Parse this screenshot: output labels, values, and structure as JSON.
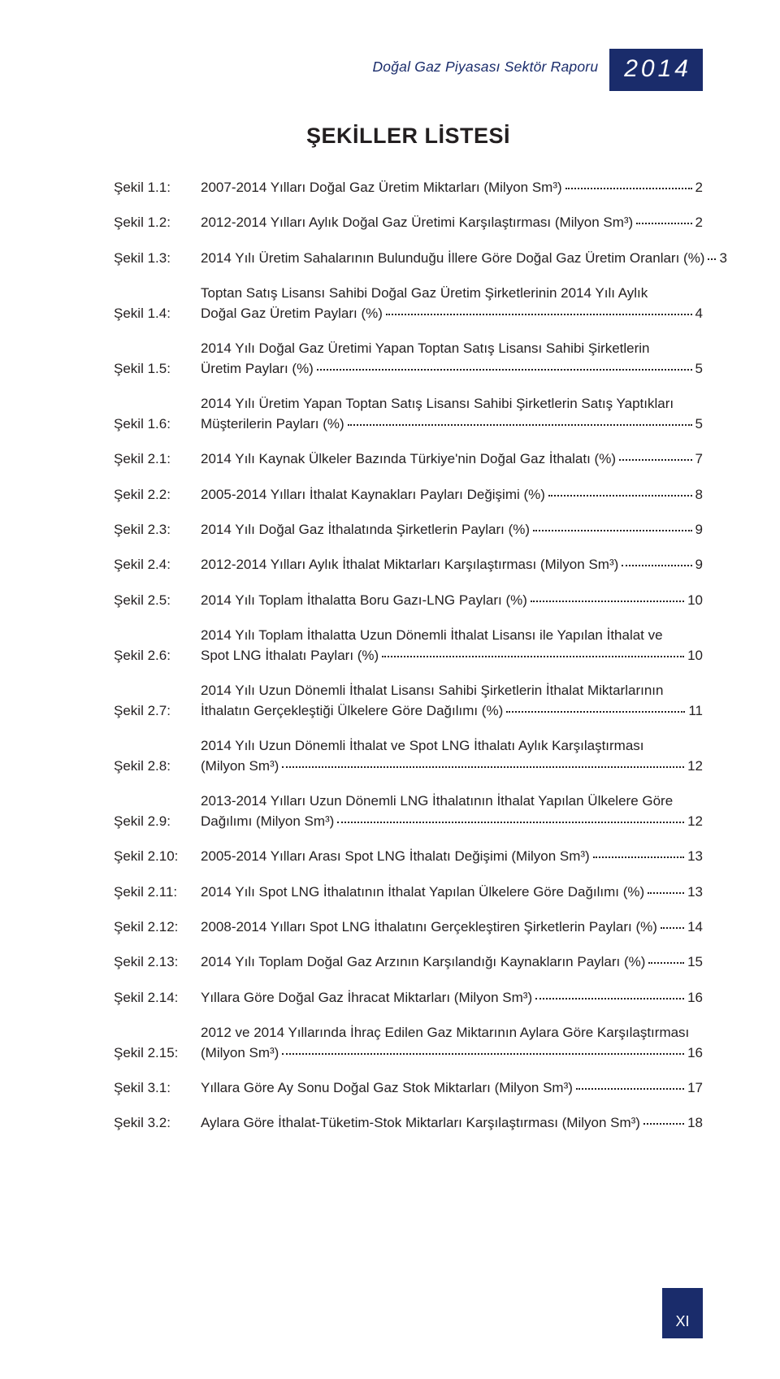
{
  "colors": {
    "accent": "#1a2c6b",
    "text": "#231f20",
    "bg": "#ffffff"
  },
  "typography": {
    "base_fontsize": 17,
    "title_fontsize": 27,
    "header_italic_fontsize": 17.5,
    "year_fontsize": 30
  },
  "header": {
    "report_title": "Doğal Gaz Piyasası Sektör Raporu",
    "year": "2014"
  },
  "title": "ŞEKİLLER LİSTESİ",
  "page_number": "XI",
  "entries": [
    {
      "label": "Şekil 1.1:",
      "lines": [
        "2007-2014 Yılları Doğal Gaz Üretim Miktarları (Milyon Sm³)"
      ],
      "page": "2"
    },
    {
      "label": "Şekil 1.2:",
      "lines": [
        "2012-2014 Yılları Aylık Doğal Gaz Üretimi Karşılaştırması (Milyon Sm³)"
      ],
      "page": "2"
    },
    {
      "label": "Şekil 1.3:",
      "lines": [
        "2014 Yılı Üretim Sahalarının Bulunduğu İllere Göre Doğal Gaz Üretim Oranları (%)"
      ],
      "page": "3"
    },
    {
      "label": "Şekil 1.4:",
      "lines": [
        "Toptan Satış Lisansı Sahibi Doğal Gaz Üretim Şirketlerinin 2014 Yılı Aylık",
        "Doğal Gaz Üretim Payları (%)"
      ],
      "page": "4"
    },
    {
      "label": "Şekil 1.5:",
      "lines": [
        "2014 Yılı Doğal Gaz Üretimi Yapan Toptan Satış Lisansı Sahibi Şirketlerin",
        "Üretim Payları (%)"
      ],
      "page": "5"
    },
    {
      "label": "Şekil 1.6:",
      "lines": [
        "2014 Yılı Üretim Yapan Toptan Satış Lisansı Sahibi Şirketlerin Satış Yaptıkları",
        "Müşterilerin Payları (%)"
      ],
      "page": "5"
    },
    {
      "label": "Şekil 2.1:",
      "lines": [
        "2014 Yılı Kaynak Ülkeler Bazında Türkiye'nin Doğal Gaz İthalatı (%)"
      ],
      "page": "7"
    },
    {
      "label": "Şekil 2.2:",
      "lines": [
        "2005-2014 Yılları İthalat Kaynakları Payları Değişimi (%)"
      ],
      "page": "8"
    },
    {
      "label": "Şekil 2.3:",
      "lines": [
        "2014 Yılı Doğal Gaz İthalatında Şirketlerin Payları (%)"
      ],
      "page": "9"
    },
    {
      "label": "Şekil 2.4:",
      "lines": [
        "2012-2014 Yılları Aylık İthalat Miktarları Karşılaştırması (Milyon Sm³)"
      ],
      "page": "9"
    },
    {
      "label": "Şekil 2.5:",
      "lines": [
        "2014 Yılı Toplam İthalatta Boru Gazı-LNG Payları (%)"
      ],
      "page": "10"
    },
    {
      "label": "Şekil 2.6:",
      "lines": [
        "2014 Yılı Toplam İthalatta Uzun Dönemli İthalat Lisansı ile Yapılan İthalat ve",
        "Spot LNG İthalatı Payları (%)"
      ],
      "page": "10"
    },
    {
      "label": "Şekil 2.7:",
      "lines": [
        "2014 Yılı Uzun Dönemli İthalat Lisansı Sahibi Şirketlerin İthalat Miktarlarının",
        "İthalatın Gerçekleştiği Ülkelere Göre Dağılımı (%)"
      ],
      "page": "11"
    },
    {
      "label": "Şekil 2.8:",
      "lines": [
        "2014 Yılı Uzun Dönemli İthalat ve Spot LNG İthalatı Aylık Karşılaştırması",
        "(Milyon Sm³)"
      ],
      "page": "12"
    },
    {
      "label": "Şekil 2.9:",
      "lines": [
        "2013-2014 Yılları Uzun Dönemli LNG İthalatının İthalat Yapılan Ülkelere Göre",
        "Dağılımı (Milyon Sm³)"
      ],
      "page": "12"
    },
    {
      "label": "Şekil 2.10:",
      "lines": [
        "2005-2014 Yılları Arası Spot LNG İthalatı Değişimi (Milyon Sm³)"
      ],
      "page": "13"
    },
    {
      "label": "Şekil 2.11:",
      "lines": [
        "2014 Yılı Spot LNG İthalatının İthalat Yapılan Ülkelere Göre Dağılımı (%)"
      ],
      "page": "13"
    },
    {
      "label": "Şekil 2.12:",
      "lines": [
        "2008-2014 Yılları Spot LNG İthalatını Gerçekleştiren Şirketlerin Payları (%)"
      ],
      "page": "14"
    },
    {
      "label": "Şekil 2.13:",
      "lines": [
        "2014 Yılı Toplam Doğal Gaz Arzının Karşılandığı Kaynakların Payları (%)"
      ],
      "page": "15"
    },
    {
      "label": "Şekil 2.14:",
      "lines": [
        "Yıllara Göre Doğal Gaz İhracat Miktarları (Milyon Sm³)"
      ],
      "page": "16"
    },
    {
      "label": "Şekil 2.15:",
      "lines": [
        "2012 ve 2014 Yıllarında İhraç Edilen Gaz Miktarının Aylara Göre Karşılaştırması",
        "(Milyon Sm³)"
      ],
      "page": "16"
    },
    {
      "label": "Şekil 3.1:",
      "lines": [
        "Yıllara Göre Ay Sonu Doğal Gaz Stok Miktarları (Milyon Sm³)"
      ],
      "page": "17"
    },
    {
      "label": "Şekil 3.2:",
      "lines": [
        "Aylara Göre İthalat-Tüketim-Stok Miktarları Karşılaştırması (Milyon Sm³)"
      ],
      "page": "18"
    }
  ]
}
